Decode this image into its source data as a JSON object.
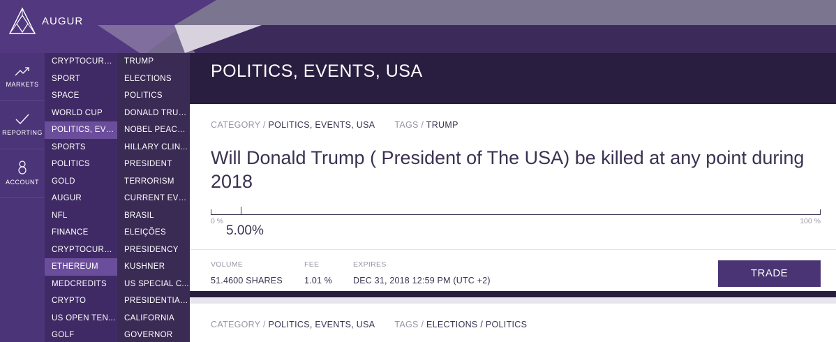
{
  "app": {
    "brand": "AUGUR"
  },
  "sidenav": [
    {
      "label": "MARKETS",
      "icon": "trending-up-icon"
    },
    {
      "label": "REPORTING",
      "icon": "check-icon"
    },
    {
      "label": "ACCOUNT",
      "icon": "user-icon"
    }
  ],
  "categories": [
    "CRYPTOCURRE...",
    "SPORT",
    "SPACE",
    "WORLD CUP",
    "POLITICS, EVE...",
    "SPORTS",
    "POLITICS",
    "GOLD",
    "AUGUR",
    "NFL",
    "FINANCE",
    "CRYPTOCURRE...",
    "ETHEREUM",
    "MEDCREDITS",
    "CRYPTO",
    "US OPEN TEN...",
    "GOLF"
  ],
  "tags": [
    "TRUMP",
    "ELECTIONS",
    "POLITICS",
    "DONALD TRUMP",
    "NOBEL PEACE ...",
    "HILLARY CLIN...",
    "PRESIDENT",
    "TERRORISM",
    "CURRENT EVE...",
    "BRASIL",
    "ELEIÇÕES",
    "PRESIDENCY",
    "KUSHNER",
    "US SPECIAL C...",
    "PRESIDENTIAL...",
    "CALIFORNIA",
    "GOVERNOR"
  ],
  "selected": {
    "category_index": 4,
    "highlight_index": 12
  },
  "main": {
    "title": "POLITICS, EVENTS, USA"
  },
  "market1": {
    "category_label": "CATEGORY",
    "category": "POLITICS, EVENTS, USA",
    "tags_label": "TAGS",
    "tags": "TRUMP",
    "question": "Will Donald Trump ( President of The USA) be killed at any point during 2018",
    "min_label": "0 %",
    "max_label": "100 %",
    "percent": "5.00%",
    "volume_label": "VOLUME",
    "volume": "51.4600 SHARES",
    "fee_label": "FEE",
    "fee": "1.01 %",
    "expires_label": "EXPIRES",
    "expires": "DEC 31, 2018 12:59 PM (UTC +2)",
    "trade_label": "TRADE"
  },
  "market2": {
    "category_label": "CATEGORY",
    "category": "POLITICS, EVENTS, USA",
    "tags_label": "TAGS",
    "tags": "ELECTIONS / POLITICS"
  },
  "colors": {
    "nav": "#4c3478",
    "header": "#2a1e40",
    "accent": "#4a3474",
    "selected": "#6b4e9b"
  }
}
